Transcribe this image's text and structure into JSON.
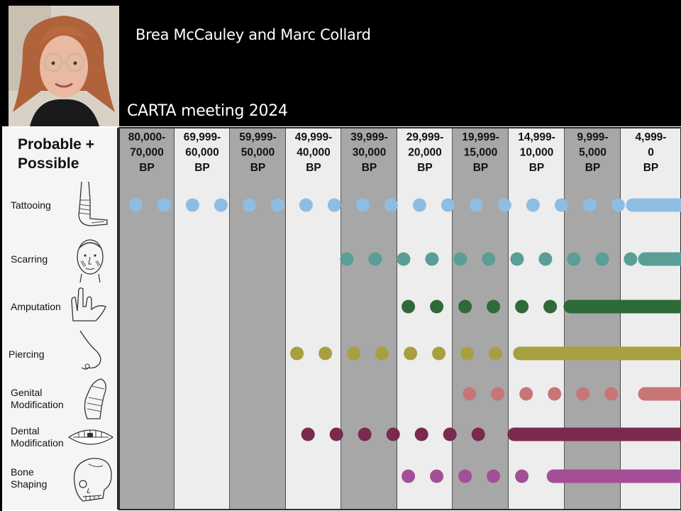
{
  "header": {
    "authors": "Brea McCauley and Marc Collard",
    "meeting": "CARTA meeting 2024"
  },
  "panel": {
    "title_line1": "Probable +",
    "title_line2": "Possible"
  },
  "periods": [
    {
      "line1": "80,000-",
      "line2": "70,000",
      "line3": "BP",
      "shade": "dark"
    },
    {
      "line1": "69,999-",
      "line2": "60,000",
      "line3": "BP",
      "shade": "light"
    },
    {
      "line1": "59,999-",
      "line2": "50,000",
      "line3": "BP",
      "shade": "dark"
    },
    {
      "line1": "49,999-",
      "line2": "40,000",
      "line3": "BP",
      "shade": "light"
    },
    {
      "line1": "39,999-",
      "line2": "30,000",
      "line3": "BP",
      "shade": "dark"
    },
    {
      "line1": "29,999-",
      "line2": "20,000",
      "line3": "BP",
      "shade": "light"
    },
    {
      "line1": "19,999-",
      "line2": "15,000",
      "line3": "BP",
      "shade": "dark"
    },
    {
      "line1": "14,999-",
      "line2": "10,000",
      "line3": "BP",
      "shade": "light"
    },
    {
      "line1": "9,999-",
      "line2": "5,000",
      "line3": "BP",
      "shade": "dark"
    },
    {
      "line1": "4,999-",
      "line2": "0",
      "line3": "BP",
      "shade": "light"
    }
  ],
  "traits": [
    {
      "label1": "Tattooing",
      "label2": "",
      "icon": "arm-tattoo-icon",
      "color": "#8ebde4",
      "dots_from_bp": 77000,
      "solid_from_bp": 4000
    },
    {
      "label1": "Scarring",
      "label2": "",
      "icon": "scarred-face-icon",
      "color": "#5a9e98",
      "dots_from_bp": 39000,
      "solid_from_bp": 3000
    },
    {
      "label1": "Amputation",
      "label2": "",
      "icon": "amputated-hand-icon",
      "color": "#2e6a38",
      "dots_from_bp": 28000,
      "solid_from_bp": 9500
    },
    {
      "label1": "Piercing",
      "label2": "",
      "icon": "pierced-nose-icon",
      "color": "#a8a040",
      "dots_from_bp": 48000,
      "solid_from_bp": 14000
    },
    {
      "label1": "Genital",
      "label2": "Modification",
      "icon": "genital-modification-icon",
      "color": "#c87577",
      "dots_from_bp": 18500,
      "solid_from_bp": 3000
    },
    {
      "label1": "Dental",
      "label2": "Modification",
      "icon": "teeth-icon",
      "color": "#7a2a4e",
      "dots_from_bp": 46000,
      "solid_from_bp": 14500
    },
    {
      "label1": "Bone",
      "label2": "Shaping",
      "icon": "skull-icon",
      "color": "#a24f98",
      "dots_from_bp": 28000,
      "solid_from_bp": 11000
    }
  ]
}
